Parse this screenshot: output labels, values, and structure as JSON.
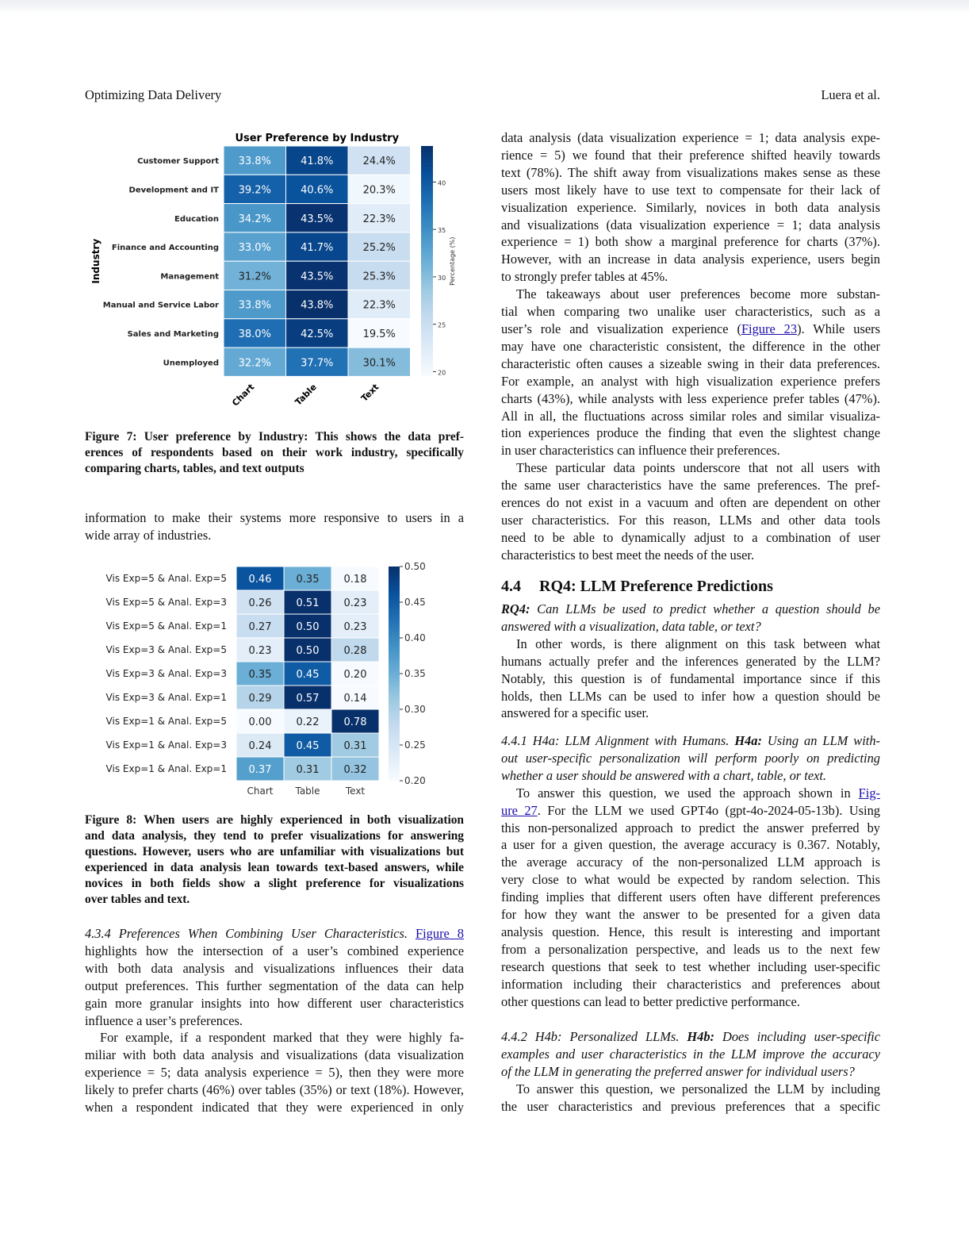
{
  "header": {
    "left": "Optimizing Data Delivery",
    "right": "Luera et al."
  },
  "figure7": {
    "caption": [
      "Figure 7: User preference by Industry: This shows the data pref-",
      "erences of respondents based on their work industry, specifically",
      "comparing charts, tables, and text outputs"
    ]
  },
  "figure8": {
    "caption": [
      "Figure 8: When users are highly experienced in both visualization",
      "and data analysis, they tend to prefer visualizations for answering",
      "questions. However, users who are unfamiliar with visualizations but",
      "experienced in data analysis lean towards text-based answers, while",
      "novices in both fields show a slight preference for visualizations",
      "over tables and text."
    ]
  },
  "chart_data": [
    {
      "type": "heatmap",
      "title": "User Preference by Industry",
      "ylabel": "Industry",
      "xlabel": "",
      "colorbar_label": "Percentage (%)",
      "colorbar_ticks": [
        "20",
        "25",
        "30",
        "35",
        "40"
      ],
      "colorbar_range": [
        19.5,
        43.8
      ],
      "categories": [
        "Chart",
        "Table",
        "Text"
      ],
      "rows": [
        "Customer Support",
        "Development and IT",
        "Education",
        "Finance and Accounting",
        "Management",
        "Manual and Service Labor",
        "Sales and Marketing",
        "Unemployed"
      ],
      "values": [
        [
          33.8,
          41.8,
          24.4
        ],
        [
          39.2,
          40.6,
          20.3
        ],
        [
          34.2,
          43.5,
          22.3
        ],
        [
          33.0,
          41.7,
          25.2
        ],
        [
          31.2,
          43.5,
          25.3
        ],
        [
          33.8,
          43.8,
          22.3
        ],
        [
          38.0,
          42.5,
          19.5
        ],
        [
          32.2,
          37.7,
          30.1
        ]
      ],
      "labels": [
        [
          "33.8%",
          "41.8%",
          "24.4%"
        ],
        [
          "39.2%",
          "40.6%",
          "20.3%"
        ],
        [
          "34.2%",
          "43.5%",
          "22.3%"
        ],
        [
          "33.0%",
          "41.7%",
          "25.2%"
        ],
        [
          "31.2%",
          "43.5%",
          "25.3%"
        ],
        [
          "33.8%",
          "43.8%",
          "22.3%"
        ],
        [
          "38.0%",
          "42.5%",
          "19.5%"
        ],
        [
          "32.2%",
          "37.7%",
          "30.1%"
        ]
      ]
    },
    {
      "type": "heatmap",
      "title": "",
      "xlabel": "",
      "ylabel": "",
      "colorbar_ticks": [
        "0.50",
        "0.45",
        "0.40",
        "0.35",
        "0.30",
        "0.25",
        "0.20"
      ],
      "colorbar_range": [
        0.2,
        0.5
      ],
      "categories": [
        "Chart",
        "Table",
        "Text"
      ],
      "rows": [
        "Vis Exp=5 & Anal. Exp=5",
        "Vis Exp=5 & Anal. Exp=3",
        "Vis Exp=5 & Anal. Exp=1",
        "Vis Exp=3 & Anal. Exp=5",
        "Vis Exp=3 & Anal. Exp=3",
        "Vis Exp=3 & Anal. Exp=1",
        "Vis Exp=1 & Anal. Exp=5",
        "Vis Exp=1 & Anal. Exp=3",
        "Vis Exp=1 & Anal. Exp=1"
      ],
      "values": [
        [
          0.46,
          0.35,
          0.18
        ],
        [
          0.26,
          0.51,
          0.23
        ],
        [
          0.27,
          0.5,
          0.23
        ],
        [
          0.23,
          0.5,
          0.28
        ],
        [
          0.35,
          0.45,
          0.2
        ],
        [
          0.29,
          0.57,
          0.14
        ],
        [
          0.0,
          0.22,
          0.78
        ],
        [
          0.24,
          0.45,
          0.31
        ],
        [
          0.37,
          0.31,
          0.32
        ]
      ],
      "labels": [
        [
          "0.46",
          "0.35",
          "0.18"
        ],
        [
          "0.26",
          "0.51",
          "0.23"
        ],
        [
          "0.27",
          "0.50",
          "0.23"
        ],
        [
          "0.23",
          "0.50",
          "0.28"
        ],
        [
          "0.35",
          "0.45",
          "0.20"
        ],
        [
          "0.29",
          "0.57",
          "0.14"
        ],
        [
          "0.00",
          "0.22",
          "0.78"
        ],
        [
          "0.24",
          "0.45",
          "0.31"
        ],
        [
          "0.37",
          "0.31",
          "0.32"
        ]
      ]
    }
  ],
  "left": {
    "p_industries": [
      [
        "information to make their systems more responsive to users in a"
      ],
      [
        "wide array of industries."
      ]
    ],
    "s434": [
      [
        {
          "t": "4.3.4   Preferences When Combining User Characteristics. ",
          "s": "i"
        },
        {
          "t": "Figure 8",
          "s": "a"
        }
      ],
      [
        "highlights how the intersection of a user’s combined experience"
      ],
      [
        "with both data analysis and visualizations influences their data"
      ],
      [
        "output preferences. This further segmentation of the data can help"
      ],
      [
        "gain more granular insights into how different user characteristics"
      ],
      [
        "influence a user’s preferences."
      ],
      [
        "For example, if a respondent marked that they were highly fa-"
      ],
      [
        "miliar with both data analysis and visualizations (data visualization"
      ],
      [
        "experience = 5; data analysis experience = 5), then they were more"
      ],
      [
        "likely to prefer charts (46%) over tables (35%) or text (18%). However,"
      ],
      [
        "when a respondent indicated that they were experienced in only"
      ]
    ]
  },
  "right": {
    "p1": [
      [
        "data analysis (data visualization experience = 1; data analysis expe-"
      ],
      [
        "rience = 5) we found that their preference shifted heavily towards"
      ],
      [
        "text (78%). The shift away from visualizations makes sense as these"
      ],
      [
        "users most likely have to use text to compensate for their lack of"
      ],
      [
        "visualization experience. Similarly, novices in both data analysis"
      ],
      [
        "and visualizations (data visualization experience = 1; data analysis"
      ],
      [
        "experience = 1) both show a marginal preference for charts (37%)."
      ],
      [
        "However, with an increase in data analysis experience, users begin"
      ],
      [
        "to strongly prefer tables at 45%."
      ],
      [
        "The takeaways about user preferences become more substan-"
      ],
      [
        "tial when comparing two unalike user characteristics, such as a"
      ],
      [
        {
          "t": "user’s role and visualization experience (",
          "s": ""
        },
        {
          "t": "Figure 23",
          "s": "a"
        },
        {
          "t": "). While users",
          "s": ""
        }
      ],
      [
        "may have one characteristic consistent, the difference in the other"
      ],
      [
        "characteristic often causes a sizeable swing in their data preferences."
      ],
      [
        "For example, an analyst with high visualization experience prefers"
      ],
      [
        "charts (43%), while analysts with less experience prefer tables (47%)."
      ],
      [
        "All in all, the fluctuations across similar roles and similar visualiza-"
      ],
      [
        "tion experiences produce the finding that even the slightest change"
      ],
      [
        "in user characteristics can influence their preferences."
      ],
      [
        "These particular data points underscore that not all users with"
      ],
      [
        "the same user characteristics have the same preferences. The pref-"
      ],
      [
        "erences do not exist in a vacuum and often are dependent on other"
      ],
      [
        "user characteristics. For this reason, LLMs and other data tools"
      ],
      [
        "need to be able to dynamically adjust to a combination of user"
      ],
      [
        "characteristics to best meet the needs of the user."
      ]
    ],
    "section_num": "4.4",
    "section_title": "RQ4: LLM Preference Predictions",
    "p2": [
      [
        {
          "t": "RQ4:",
          "s": "bi"
        },
        {
          "t": " Can LLMs be used to predict whether a question should be",
          "s": "i"
        }
      ],
      [
        {
          "t": "answered with a visualization, data table, or text?",
          "s": "i"
        }
      ],
      [
        "In other words, is there alignment on this task between what"
      ],
      [
        "humans actually prefer and the inferences generated by the LLM?"
      ],
      [
        "Notably, this question is of fundamental importance since if this"
      ],
      [
        "holds, then LLMs can be used to infer how a question should be"
      ],
      [
        "answered for a specific user."
      ]
    ],
    "p3": [
      [
        {
          "t": "4.4.1   H4a: LLM Alignment with Humans. ",
          "s": "i"
        },
        {
          "t": "H4a:",
          "s": "bi"
        },
        {
          "t": " Using an LLM with-",
          "s": "i"
        }
      ],
      [
        {
          "t": "out user-specific personalization will perform poorly on predicting",
          "s": "i"
        }
      ],
      [
        {
          "t": "whether a user should be answered with a chart, table, or text.",
          "s": "i"
        }
      ],
      [
        {
          "t": "To answer this question, we used the approach shown in ",
          "s": ""
        },
        {
          "t": "Fig-",
          "s": "a"
        }
      ],
      [
        {
          "t": "ure 27",
          "s": "a"
        },
        {
          "t": ". For the LLM we used GPT4o (gpt-4o-2024-05-13b). Using",
          "s": ""
        }
      ],
      [
        "this non-personalized approach to predict the answer preferred by"
      ],
      [
        "a user for a given question, the average accuracy is 0.367. Notably,"
      ],
      [
        "the average accuracy of the non-personalized LLM approach is"
      ],
      [
        "very close to what would be expected by random selection. This"
      ],
      [
        "finding implies that different users often have different preferences"
      ],
      [
        "for how they want the answer to be presented for a given data"
      ],
      [
        "analysis question. Hence, this result is interesting and important"
      ],
      [
        "from a personalization perspective, and leads us to the next few"
      ],
      [
        "research questions that seek to test whether including user-specific"
      ],
      [
        "information including their characteristics and preferences about"
      ],
      [
        "other questions can lead to better predictive performance."
      ]
    ],
    "p4": [
      [
        {
          "t": "4.4.2   H4b: Personalized LLMs. ",
          "s": "i"
        },
        {
          "t": "H4b:",
          "s": "bi"
        },
        {
          "t": " Does including user-specific",
          "s": "i"
        }
      ],
      [
        {
          "t": "examples and user characteristics in the LLM improve the accuracy",
          "s": "i"
        }
      ],
      [
        {
          "t": "of the LLM in generating the preferred answer for individual users?",
          "s": "i"
        }
      ],
      [
        "To answer this question, we personalized the LLM by including"
      ],
      [
        "the user characteristics and previous preferences that a specific"
      ]
    ]
  }
}
